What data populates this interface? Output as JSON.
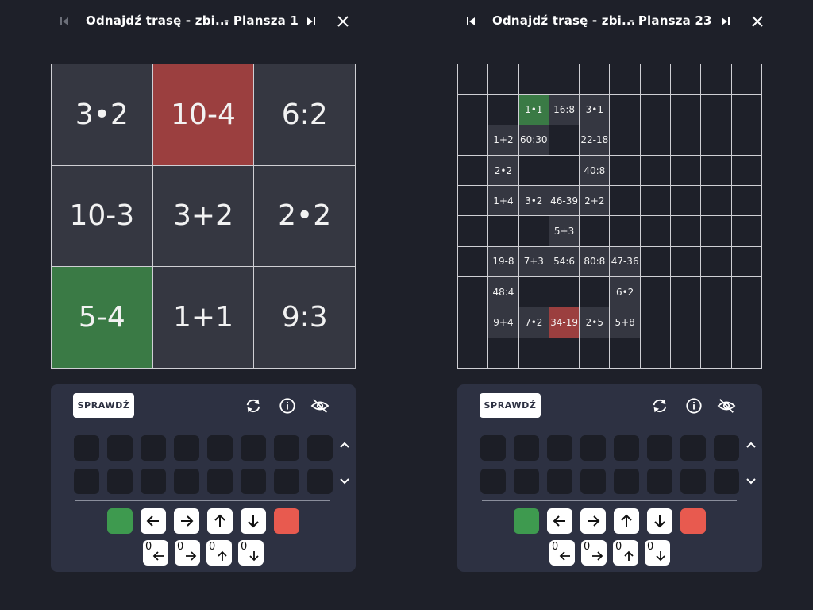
{
  "panels": [
    {
      "id": "left",
      "header": {
        "title": "Odnajdź trasę - zbi...",
        "board": "- Plansza 1"
      },
      "grid_size": 3,
      "cells": [
        {
          "text": "3•2",
          "state": "normal"
        },
        {
          "text": "10-4",
          "state": "end"
        },
        {
          "text": "6:2",
          "state": "normal"
        },
        {
          "text": "10-3",
          "state": "normal"
        },
        {
          "text": "3+2",
          "state": "normal"
        },
        {
          "text": "2•2",
          "state": "normal"
        },
        {
          "text": "5-4",
          "state": "start"
        },
        {
          "text": "1+1",
          "state": "normal"
        },
        {
          "text": "9:3",
          "state": "normal"
        }
      ],
      "controls": {
        "check_label": "SPRAWDŹ"
      }
    },
    {
      "id": "right",
      "header": {
        "title": "Odnajdź trasę - zbi...",
        "board": "- Plansza 23"
      },
      "grid_size": 10,
      "cells_sparse": [
        {
          "r": 1,
          "c": 2,
          "text": "1•1",
          "state": "start"
        },
        {
          "r": 1,
          "c": 3,
          "text": "16:8",
          "state": "normal"
        },
        {
          "r": 1,
          "c": 4,
          "text": "3•1",
          "state": "normal"
        },
        {
          "r": 2,
          "c": 1,
          "text": "1+2",
          "state": "normal"
        },
        {
          "r": 2,
          "c": 2,
          "text": "60:30",
          "state": "normal"
        },
        {
          "r": 2,
          "c": 4,
          "text": "22-18",
          "state": "normal"
        },
        {
          "r": 3,
          "c": 1,
          "text": "2•2",
          "state": "normal"
        },
        {
          "r": 3,
          "c": 4,
          "text": "40:8",
          "state": "normal"
        },
        {
          "r": 4,
          "c": 1,
          "text": "1+4",
          "state": "normal"
        },
        {
          "r": 4,
          "c": 2,
          "text": "3•2",
          "state": "normal"
        },
        {
          "r": 4,
          "c": 3,
          "text": "46-39",
          "state": "normal"
        },
        {
          "r": 4,
          "c": 4,
          "text": "2+2",
          "state": "normal"
        },
        {
          "r": 5,
          "c": 3,
          "text": "5+3",
          "state": "normal"
        },
        {
          "r": 6,
          "c": 1,
          "text": "19-8",
          "state": "normal"
        },
        {
          "r": 6,
          "c": 2,
          "text": "7+3",
          "state": "normal"
        },
        {
          "r": 6,
          "c": 3,
          "text": "54:6",
          "state": "normal"
        },
        {
          "r": 6,
          "c": 4,
          "text": "80:8",
          "state": "normal"
        },
        {
          "r": 6,
          "c": 5,
          "text": "47-36",
          "state": "normal"
        },
        {
          "r": 7,
          "c": 1,
          "text": "48:4",
          "state": "normal"
        },
        {
          "r": 7,
          "c": 5,
          "text": "6•2",
          "state": "normal"
        },
        {
          "r": 8,
          "c": 1,
          "text": "9+4",
          "state": "normal"
        },
        {
          "r": 8,
          "c": 2,
          "text": "7•2",
          "state": "normal"
        },
        {
          "r": 8,
          "c": 3,
          "text": "34-19",
          "state": "end"
        },
        {
          "r": 8,
          "c": 4,
          "text": "2•5",
          "state": "normal"
        },
        {
          "r": 8,
          "c": 5,
          "text": "5+8",
          "state": "normal"
        }
      ],
      "controls": {
        "check_label": "SPRAWDŹ"
      }
    }
  ],
  "icons": [
    "skip-start-icon",
    "skip-end-icon",
    "close-icon",
    "reset-icon",
    "info-icon",
    "hide-icon",
    "chevron-up-icon",
    "chevron-down-icon",
    "arrow-left-icon",
    "arrow-right-icon",
    "arrow-up-icon",
    "arrow-down-icon"
  ],
  "zero_key_digit": "0",
  "colors": {
    "start": "#3a7a45",
    "end": "#9b3f3f",
    "key_green": "#3e9a4f",
    "key_red": "#e85a4f",
    "panel": "#2d3142",
    "bg": "#1e2029"
  }
}
